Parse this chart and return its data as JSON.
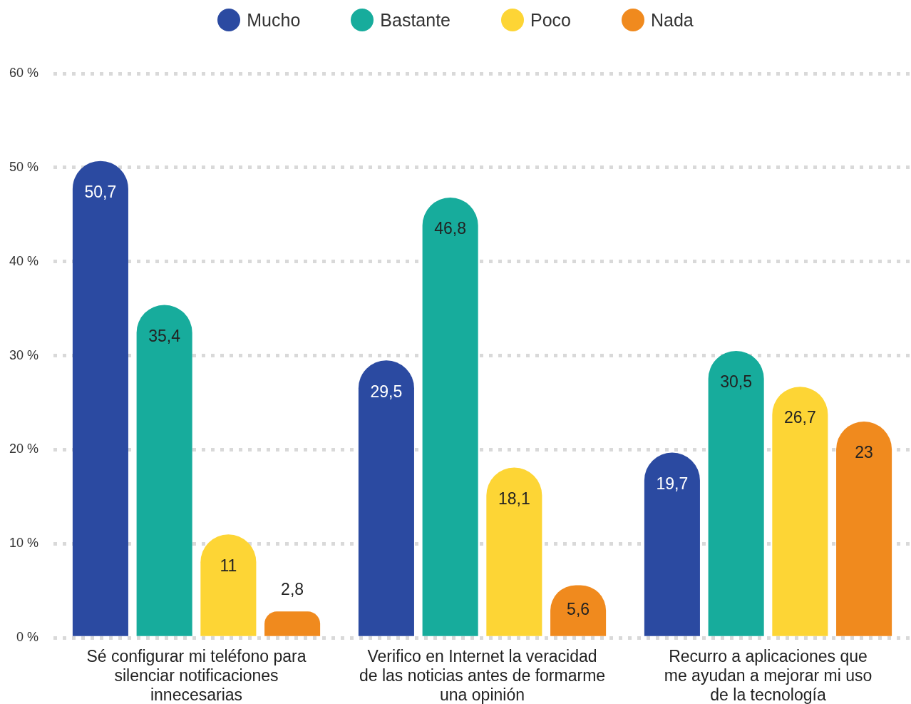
{
  "chart_data": {
    "type": "bar",
    "categories": [
      "Sé configurar mi teléfono para\nsilenciar notificaciones\ninnecesarias",
      "Verifico en Internet la veracidad\nde las noticias antes de formarme\nuna opinión",
      "Recurro a aplicaciones que\nme ayudan a mejorar mi uso\nde la tecnología"
    ],
    "series": [
      {
        "name": "Mucho",
        "color": "#2b4aa1",
        "values": [
          50.7,
          29.5,
          19.7
        ],
        "value_labels": [
          "50,7",
          "29,5",
          "19,7"
        ]
      },
      {
        "name": "Bastante",
        "color": "#17ac9c",
        "values": [
          35.4,
          46.8,
          30.5
        ],
        "value_labels": [
          "35,4",
          "46,8",
          "30,5"
        ]
      },
      {
        "name": "Poco",
        "color": "#fdd535",
        "values": [
          11,
          18.1,
          26.7
        ],
        "value_labels": [
          "11",
          "18,1",
          "26,7"
        ]
      },
      {
        "name": "Nada",
        "color": "#f08a1e",
        "values": [
          2.8,
          5.6,
          23
        ],
        "value_labels": [
          "2,8",
          "5,6",
          "23"
        ]
      }
    ],
    "ylim": [
      0,
      60
    ],
    "yticks": [
      {
        "value": 0,
        "label": "0 %"
      },
      {
        "value": 10,
        "label": "10 %"
      },
      {
        "value": 20,
        "label": "20 %"
      },
      {
        "value": 30,
        "label": "30 %"
      },
      {
        "value": 40,
        "label": "40 %"
      },
      {
        "value": 50,
        "label": "50 %"
      },
      {
        "value": 60,
        "label": "60 %"
      }
    ],
    "grid": "y",
    "legend": "top"
  }
}
